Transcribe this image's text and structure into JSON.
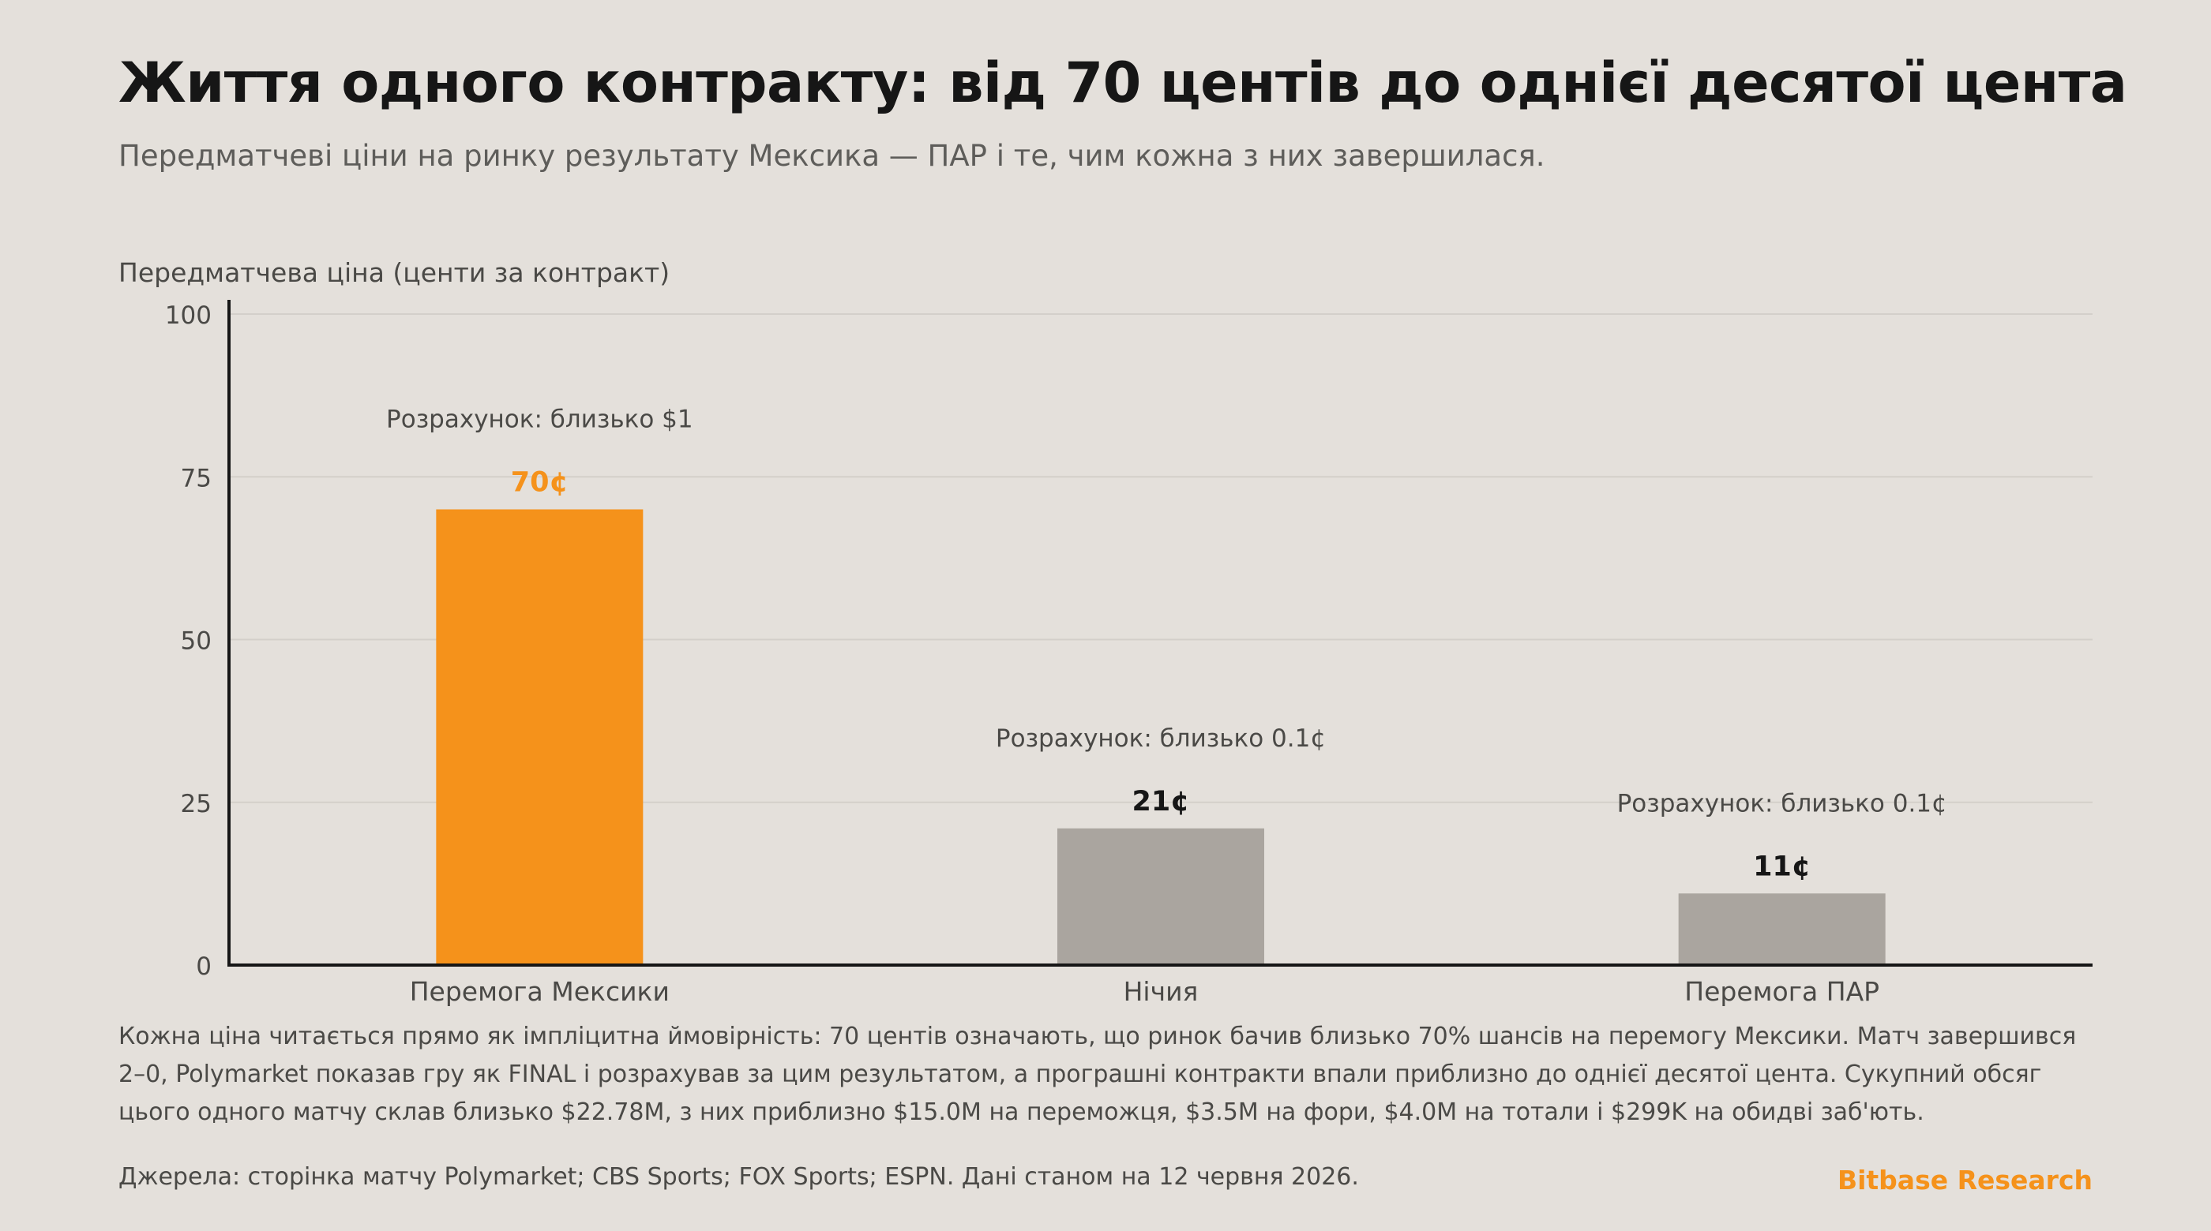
{
  "header": {
    "title": "Життя одного контракту: від 70 центів до однієї десятої цента",
    "subtitle": "Передматчеві ціни на ринку результату Мексика — ПАР і те, чим кожна з них завершилася."
  },
  "chart_data": {
    "type": "bar",
    "ylabel": "Передматчева ціна (центи за контракт)",
    "ylim": [
      0,
      100
    ],
    "yticks": [
      "0",
      "25",
      "50",
      "75",
      "100"
    ],
    "grid": true,
    "categories": [
      "Перемога Мексики",
      "Нічия",
      "Перемога ПАР"
    ],
    "values": [
      70,
      21,
      11
    ],
    "value_labels": [
      "70¢",
      "21¢",
      "11¢"
    ],
    "annotations": [
      "Розрахунок: близько $1",
      "Розрахунок: близько 0.1¢",
      "Розрахунок: близько 0.1¢"
    ],
    "colors": [
      "#f5921b",
      "#aaa59f",
      "#aaa59f"
    ],
    "value_label_colors": [
      "#f5921b",
      "#161616",
      "#161616"
    ]
  },
  "footer": {
    "note": "Кожна ціна читається прямо як імпліцитна ймовірність: 70 центів означають, що ринок бачив близько 70% шансів на перемогу Мексики. Матч завершився 2–0, Polymarket показав гру як FINAL і розрахував за цим результатом, а програшні контракти впали приблизно до однієї десятої цента. Сукупний обсяг цього одного матчу склав близько $22.78M, з них приблизно $15.0M на переможця, $3.5M на фори, $4.0M на тотали і $299K на обидві заб'ють.",
    "sources": "Джерела: сторінка матчу Polymarket; CBS Sports; FOX Sports; ESPN. Дані станом на 12 червня 2026.",
    "brand": "Bitbase Research"
  }
}
